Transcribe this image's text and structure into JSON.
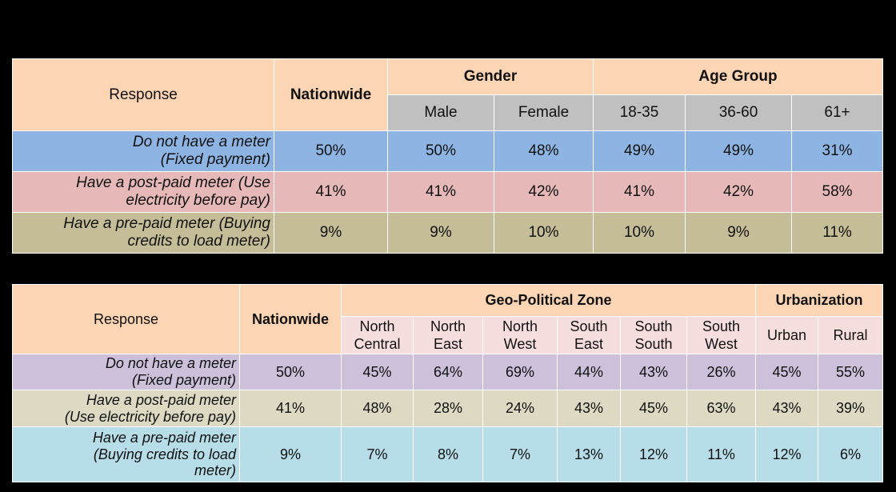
{
  "chart_data": [
    {
      "type": "table",
      "header": {
        "response": "Response",
        "nationwide": "Nationwide",
        "groups": [
          {
            "name": "Gender",
            "columns": [
              "Male",
              "Female"
            ]
          },
          {
            "name": "Age Group",
            "columns": [
              "18-35",
              "36-60",
              "61+"
            ]
          }
        ]
      },
      "rows": [
        {
          "label_lines": [
            "Do not have a meter",
            "(Fixed payment)"
          ],
          "values": [
            "50%",
            "50%",
            "48%",
            "49%",
            "49%",
            "31%"
          ]
        },
        {
          "label_lines": [
            "Have a post-paid meter (Use",
            "electricity before pay)"
          ],
          "values": [
            "41%",
            "41%",
            "42%",
            "41%",
            "42%",
            "58%"
          ]
        },
        {
          "label_lines": [
            "Have a pre-paid meter (Buying",
            "credits to load meter)"
          ],
          "values": [
            "9%",
            "9%",
            "10%",
            "10%",
            "9%",
            "11%"
          ]
        }
      ]
    },
    {
      "type": "table",
      "header": {
        "response": "Response",
        "nationwide": "Nationwide",
        "groups": [
          {
            "name": "Geo-Political Zone",
            "columns": [
              [
                "North",
                "Central"
              ],
              [
                "North",
                "East"
              ],
              [
                "North",
                "West"
              ],
              [
                "South",
                "East"
              ],
              [
                "South",
                "South"
              ],
              [
                "South",
                "West"
              ]
            ]
          },
          {
            "name": "Urbanization",
            "columns": [
              [
                "Urban"
              ],
              [
                "Rural"
              ]
            ]
          }
        ]
      },
      "rows": [
        {
          "label_lines": [
            "Do not have a meter",
            "(Fixed payment)"
          ],
          "values": [
            "50%",
            "45%",
            "64%",
            "69%",
            "44%",
            "43%",
            "26%",
            "45%",
            "55%"
          ]
        },
        {
          "label_lines": [
            "Have a post-paid meter",
            "(Use electricity before pay)"
          ],
          "values": [
            "41%",
            "48%",
            "28%",
            "24%",
            "43%",
            "45%",
            "63%",
            "43%",
            "39%"
          ]
        },
        {
          "label_lines": [
            "Have a pre-paid meter",
            "(Buying credits to load",
            "meter)"
          ],
          "values": [
            "9%",
            "7%",
            "8%",
            "7%",
            "13%",
            "12%",
            "11%",
            "12%",
            "6%"
          ]
        }
      ]
    }
  ]
}
